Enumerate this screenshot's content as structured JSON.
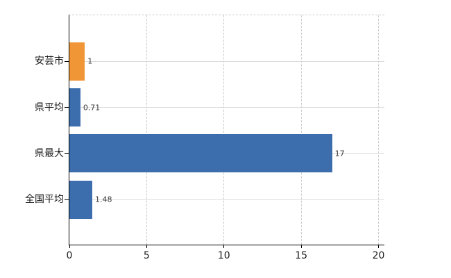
{
  "chart_data": {
    "type": "bar",
    "orientation": "horizontal",
    "title": "",
    "xlabel": "",
    "ylabel": "",
    "categories": [
      "安芸市",
      "県平均",
      "県最大",
      "全国平均"
    ],
    "values": [
      1,
      0.71,
      17,
      1.48
    ],
    "value_labels": [
      "1",
      "0.71",
      "17",
      "1.48"
    ],
    "bar_colors": [
      "#F09637",
      "#3C6EAD",
      "#3C6EAD",
      "#3C6EAD"
    ],
    "xlim": [
      0,
      20
    ],
    "xticks": [
      "0",
      "5",
      "10",
      "15",
      "20"
    ],
    "xtick_values": [
      0,
      5,
      10,
      15,
      20
    ],
    "legend_position": "none",
    "grid": {
      "vertical_lines": "dashed",
      "row_lines": "solid",
      "top_border": "dashed"
    },
    "colors": {
      "background": "#ffffff",
      "bar_blue": "#3C6EAD",
      "bar_orange": "#F09637",
      "axis_line": "#000000",
      "grid_dashed": "#cccccc",
      "grid_solid": "#d9ded9",
      "tick_label": "#1a1a1a",
      "value_label": "#3c3c3c"
    }
  }
}
